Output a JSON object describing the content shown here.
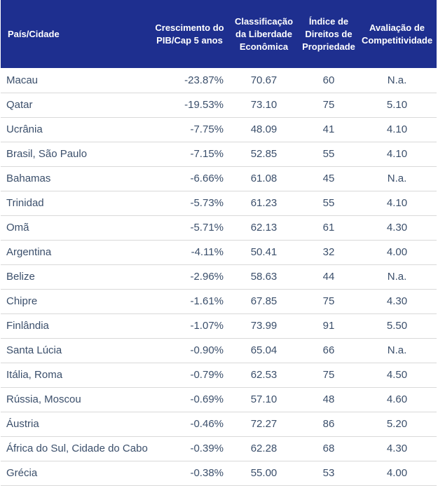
{
  "table": {
    "headers": [
      "País/Cidade",
      "Crescimento do PIB/Cap 5 anos",
      "Classificação da Liberdade Econômica",
      "Índice de Direitos de Propriedade",
      "Avaliação de Competitividade"
    ],
    "rows": [
      [
        "Macau",
        "-23.87%",
        "70.67",
        "60",
        "N.a."
      ],
      [
        "Qatar",
        "-19.53%",
        "73.10",
        "75",
        "5.10"
      ],
      [
        "Ucrânia",
        "-7.75%",
        "48.09",
        "41",
        "4.10"
      ],
      [
        "Brasil, São Paulo",
        "-7.15%",
        "52.85",
        "55",
        "4.10"
      ],
      [
        "Bahamas",
        "-6.66%",
        "61.08",
        "45",
        "N.a."
      ],
      [
        "Trinidad",
        "-5.73%",
        "61.23",
        "55",
        "4.10"
      ],
      [
        "Omã",
        "-5.71%",
        "62.13",
        "61",
        "4.30"
      ],
      [
        "Argentina",
        "-4.11%",
        "50.41",
        "32",
        "4.00"
      ],
      [
        "Belize",
        "-2.96%",
        "58.63",
        "44",
        "N.a."
      ],
      [
        "Chipre",
        "-1.61%",
        "67.85",
        "75",
        "4.30"
      ],
      [
        "Finlândia",
        "-1.07%",
        "73.99",
        "91",
        "5.50"
      ],
      [
        "Santa Lúcia",
        "-0.90%",
        "65.04",
        "66",
        "N.a."
      ],
      [
        "Itália, Roma",
        "-0.79%",
        "62.53",
        "75",
        "4.50"
      ],
      [
        "Rússia, Moscou",
        "-0.69%",
        "57.10",
        "48",
        "4.60"
      ],
      [
        "Áustria",
        "-0.46%",
        "72.27",
        "86",
        "5.20"
      ],
      [
        "África do Sul, Cidade do Cabo",
        "-0.39%",
        "62.28",
        "68",
        "4.30"
      ],
      [
        "Grécia",
        "-0.38%",
        "55.00",
        "53",
        "4.00"
      ]
    ]
  }
}
